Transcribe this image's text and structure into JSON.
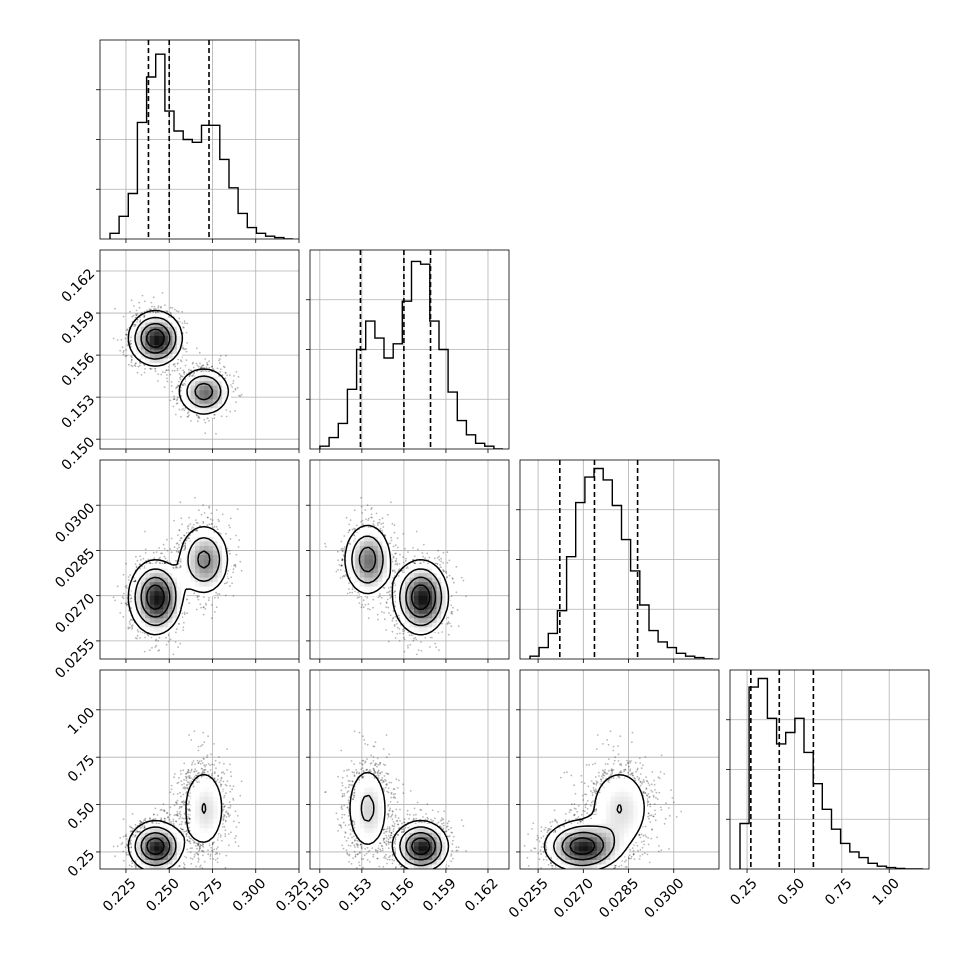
{
  "chart_data": {
    "type": "corner",
    "parameters": [
      {
        "ticks": [
          "0.225",
          "0.250",
          "0.275",
          "0.300",
          "0.325"
        ],
        "tick_values": [
          0.225,
          0.25,
          0.275,
          0.3,
          0.325
        ],
        "range": [
          0.21,
          0.325
        ],
        "quantiles": [
          0.238,
          0.25,
          0.273
        ],
        "hist": [
          0.02,
          0.08,
          0.16,
          0.41,
          0.57,
          0.65,
          0.45,
          0.38,
          0.35,
          0.34,
          0.4,
          0.4,
          0.28,
          0.18,
          0.09,
          0.04,
          0.02,
          0.01,
          0.005,
          0.0
        ]
      },
      {
        "ticks": [
          "0.150",
          "0.153",
          "0.156",
          "0.159",
          "0.162"
        ],
        "tick_values": [
          0.15,
          0.153,
          0.156,
          0.159,
          0.162
        ],
        "range": [
          0.1493,
          0.1635
        ],
        "quantiles": [
          0.1529,
          0.156,
          0.1579
        ],
        "hist": [
          0.01,
          0.04,
          0.09,
          0.21,
          0.35,
          0.45,
          0.39,
          0.32,
          0.37,
          0.52,
          0.66,
          0.65,
          0.45,
          0.35,
          0.2,
          0.1,
          0.05,
          0.02,
          0.01,
          0.0
        ]
      },
      {
        "ticks": [
          "0.0255",
          "0.0270",
          "0.0285",
          "0.0300"
        ],
        "tick_values": [
          0.0255,
          0.027,
          0.0285,
          0.03
        ],
        "range": [
          0.0249,
          0.0315
        ],
        "quantiles": [
          0.02622,
          0.02737,
          0.0288
        ],
        "hist": [
          0.01,
          0.04,
          0.09,
          0.17,
          0.36,
          0.55,
          0.64,
          0.67,
          0.63,
          0.54,
          0.42,
          0.31,
          0.19,
          0.1,
          0.06,
          0.04,
          0.02,
          0.01,
          0.005,
          0.0
        ]
      },
      {
        "ticks": [
          "0.25",
          "0.50",
          "0.75",
          "1.00"
        ],
        "tick_values": [
          0.25,
          0.5,
          0.75,
          1.0
        ],
        "range": [
          0.16,
          1.21
        ],
        "quantiles": [
          0.27,
          0.42,
          0.6
        ],
        "hist": [
          0.16,
          0.64,
          0.67,
          0.53,
          0.44,
          0.48,
          0.53,
          0.41,
          0.3,
          0.21,
          0.14,
          0.09,
          0.06,
          0.04,
          0.02,
          0.01,
          0.005,
          0.002,
          0.0,
          0.0
        ]
      }
    ],
    "modes": [
      {
        "center": [
          0.242,
          0.1572,
          0.02695,
          0.28
        ],
        "spread": [
          0.0075,
          0.00095,
          0.0006,
          0.065
        ],
        "weight": 0.62
      },
      {
        "center": [
          0.27,
          0.1534,
          0.0282,
          0.48
        ],
        "spread": [
          0.0075,
          0.00085,
          0.0006,
          0.13
        ],
        "weight": 0.38
      }
    ]
  }
}
